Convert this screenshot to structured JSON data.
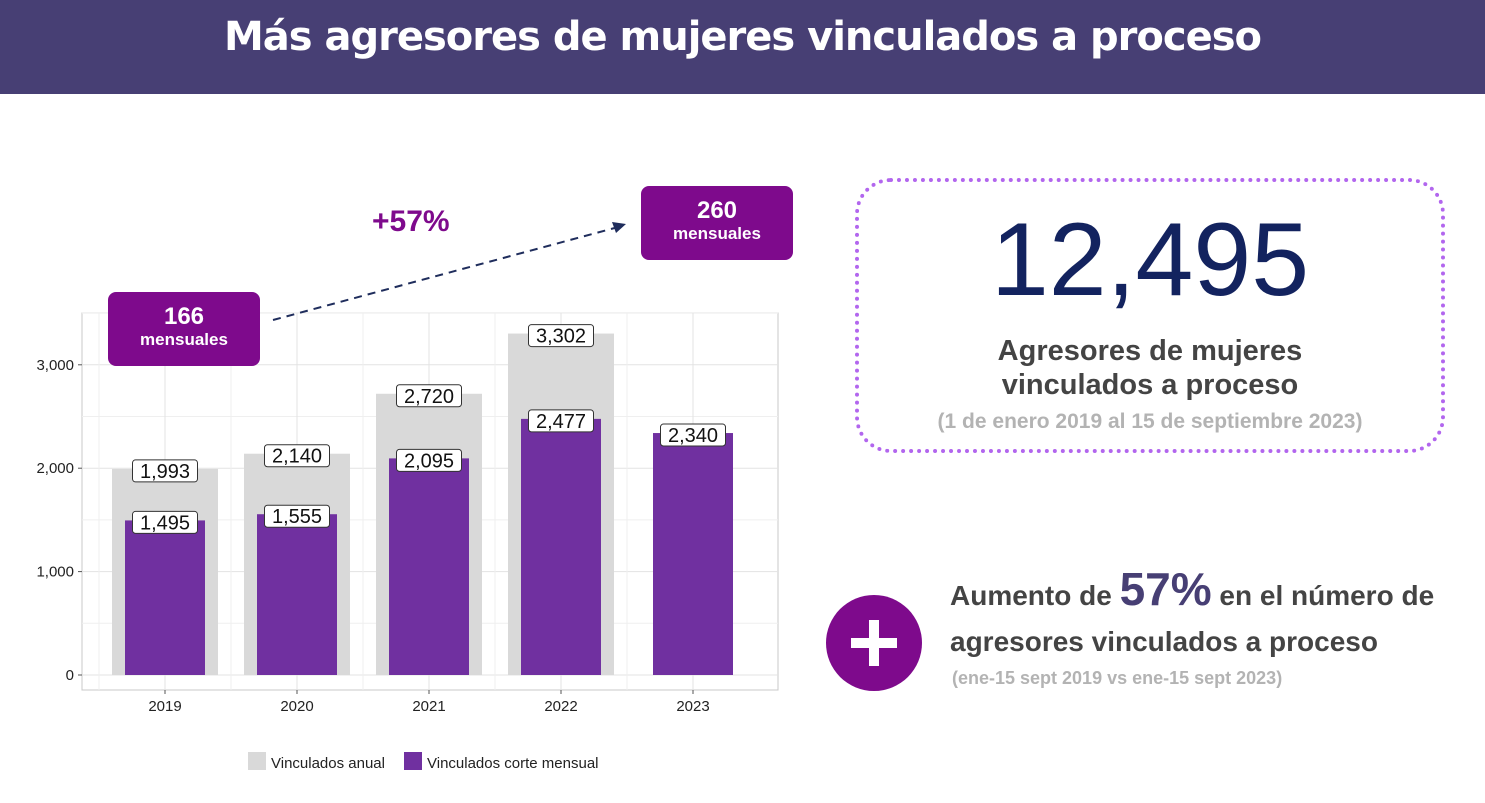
{
  "header": {
    "title": "Más agresores de mujeres vinculados a proceso"
  },
  "callouts": {
    "left_value": "166",
    "left_unit": "mensuales",
    "right_value": "260",
    "right_unit": "mensuales",
    "growth": "+57%"
  },
  "summary": {
    "total": "12,495",
    "label": "Agresores de mujeres vinculados a proceso",
    "range": "(1 de enero 2019 al 15 de septiembre 2023)"
  },
  "increase": {
    "prefix": "Aumento de ",
    "pct": "57%",
    "suffix": " en el número de agresores vinculados a proceso",
    "range": "(ene-15 sept  2019 vs ene-15 sept 2023)"
  },
  "colors": {
    "banner": "#473f74",
    "accent": "#7e0a8c",
    "anual": "#d9d9d9",
    "mensual": "#7030a0",
    "total": "#13235f"
  },
  "chart_data": {
    "type": "bar",
    "categories": [
      "2019",
      "2020",
      "2021",
      "2022",
      "2023"
    ],
    "series": [
      {
        "name": "Vinculados anual",
        "values": [
          1993,
          2140,
          2720,
          3302,
          null
        ],
        "labels": [
          "1,993",
          "2,140",
          "2,720",
          "3,302",
          null
        ]
      },
      {
        "name": "Vinculados corte mensual",
        "values": [
          1495,
          1555,
          2095,
          2477,
          2340
        ],
        "labels": [
          "1,495",
          "1,555",
          "2,095",
          "2,477",
          "2,340"
        ]
      }
    ],
    "yticks": [
      0,
      1000,
      2000,
      3000
    ],
    "ytick_labels": [
      "0",
      "1,000",
      "2,000",
      "3,000"
    ],
    "ylim": [
      0,
      3500
    ],
    "grid": true,
    "legend_position": "bottom"
  }
}
